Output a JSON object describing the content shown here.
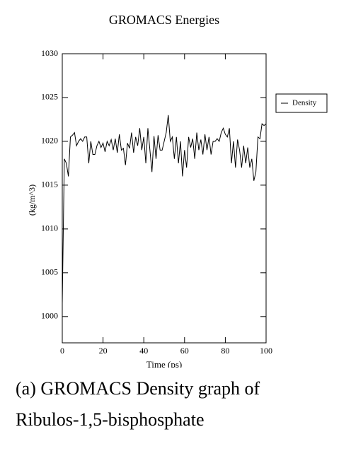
{
  "chart_data": {
    "type": "line",
    "title": "GROMACS Energies",
    "xlabel": "Time (ps)",
    "ylabel": "(kg/m^3)",
    "x": [
      0,
      1,
      2,
      3,
      4,
      5,
      6,
      7,
      8,
      9,
      10,
      11,
      12,
      13,
      14,
      15,
      16,
      17,
      18,
      19,
      20,
      21,
      22,
      23,
      24,
      25,
      26,
      27,
      28,
      29,
      30,
      31,
      32,
      33,
      34,
      35,
      36,
      37,
      38,
      39,
      40,
      41,
      42,
      43,
      44,
      45,
      46,
      47,
      48,
      49,
      50,
      51,
      52,
      53,
      54,
      55,
      56,
      57,
      58,
      59,
      60,
      61,
      62,
      63,
      64,
      65,
      66,
      67,
      68,
      69,
      70,
      71,
      72,
      73,
      74,
      75,
      76,
      77,
      78,
      79,
      80,
      81,
      82,
      83,
      84,
      85,
      86,
      87,
      88,
      89,
      90,
      91,
      92,
      93,
      94,
      95,
      96,
      97,
      98,
      99,
      100
    ],
    "series": [
      {
        "name": "Density",
        "color": "#000000",
        "values": [
          1001.5,
          1018,
          1017.5,
          1016,
          1020.5,
          1020.7,
          1021,
          1019.5,
          1020,
          1020.3,
          1020,
          1020.5,
          1020.5,
          1017.5,
          1020,
          1018.5,
          1018.5,
          1019.5,
          1020,
          1019.3,
          1019.8,
          1018.8,
          1020,
          1019.5,
          1020.2,
          1019,
          1020.3,
          1018.7,
          1020.8,
          1019,
          1019.2,
          1017.3,
          1019.8,
          1019.2,
          1021,
          1018.7,
          1020.5,
          1019.5,
          1021.5,
          1019,
          1020.5,
          1017.5,
          1021.5,
          1019,
          1016.5,
          1020.6,
          1018,
          1020.7,
          1019,
          1019,
          1020,
          1021,
          1023,
          1020,
          1020.5,
          1018,
          1020.5,
          1017.5,
          1020,
          1016,
          1019,
          1017,
          1020.5,
          1019.3,
          1020.3,
          1018,
          1021,
          1019,
          1020.2,
          1018.5,
          1020.8,
          1019,
          1020.5,
          1018.5,
          1020,
          1020,
          1020.3,
          1020,
          1021,
          1021.5,
          1020.8,
          1020.5,
          1021.5,
          1017.5,
          1020,
          1017,
          1020.2,
          1019,
          1017,
          1019.5,
          1017.5,
          1019.3,
          1017,
          1018,
          1015.5,
          1016.5,
          1020.5,
          1020.3,
          1022,
          1021.8,
          1022
        ]
      }
    ],
    "xlim": [
      0,
      100
    ],
    "xticks": [
      0,
      20,
      40,
      60,
      80,
      100
    ],
    "ylim": [
      997,
      1030
    ],
    "yticks": [
      1000,
      1005,
      1010,
      1015,
      1020,
      1025,
      1030
    ],
    "legend": "upper right outside",
    "caption": "(a) GROMACS Density graph of Ribulos-1,5-bisphosphate"
  }
}
